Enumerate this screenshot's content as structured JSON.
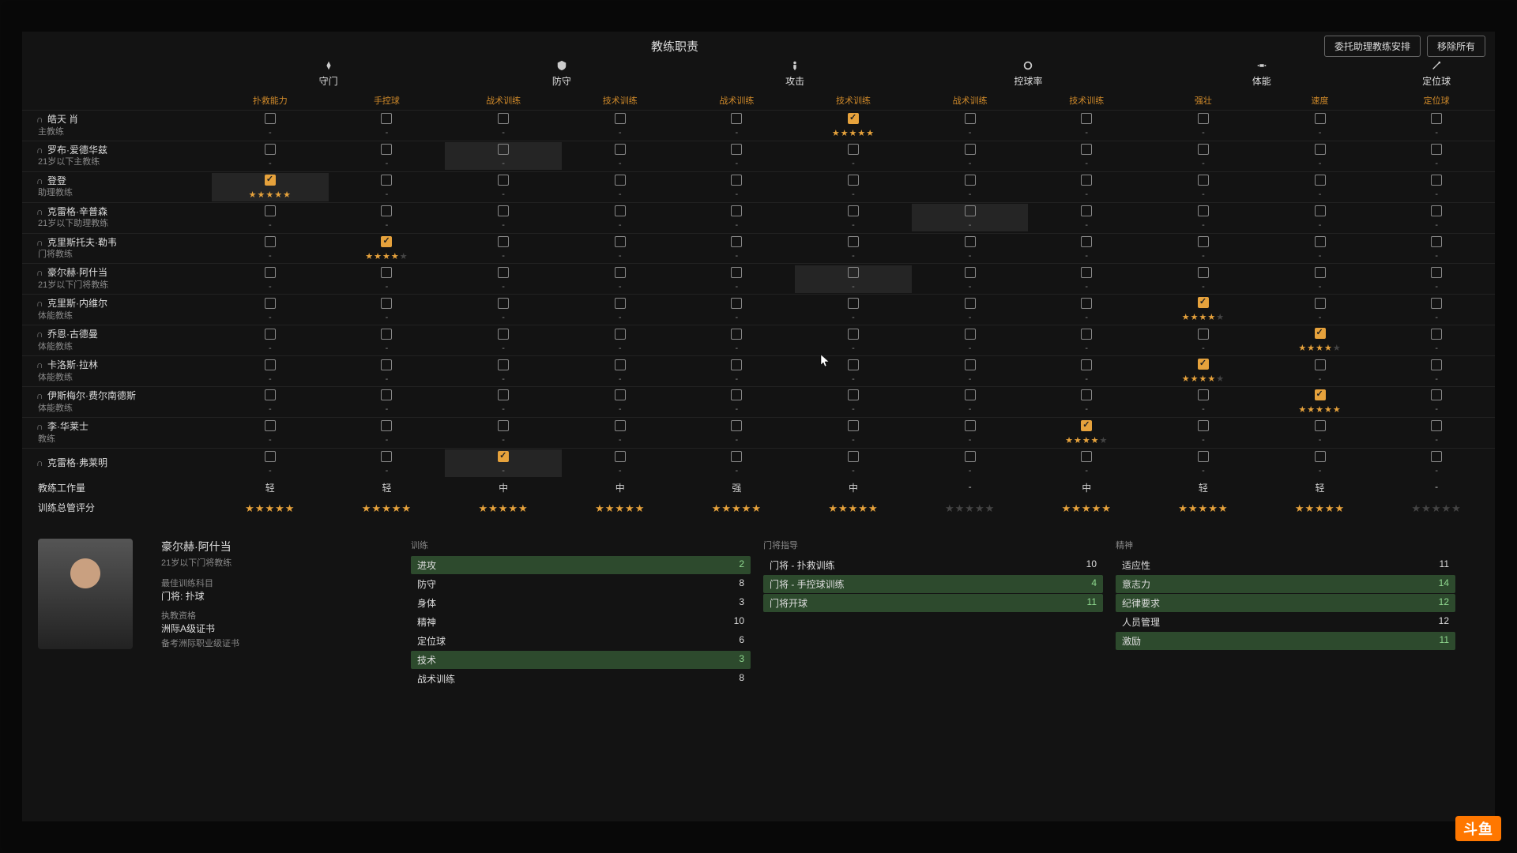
{
  "colors": {
    "accent": "#e6a23c",
    "bg": "#141414",
    "text": "#cccccc",
    "muted": "#888888",
    "highlight_green": "#2d4a2d"
  },
  "header": {
    "title": "教练职责",
    "delegate_btn": "委托助理教练安排",
    "remove_all_btn": "移除所有"
  },
  "categories": [
    {
      "label": "守门",
      "sub": [
        "扑救能力",
        "手控球"
      ]
    },
    {
      "label": "防守",
      "sub": [
        "战术训练",
        "技术训练"
      ]
    },
    {
      "label": "攻击",
      "sub": [
        "战术训练",
        "技术训练"
      ]
    },
    {
      "label": "控球率",
      "sub": [
        "战术训练",
        "技术训练"
      ]
    },
    {
      "label": "体能",
      "sub": [
        "强壮",
        "速度"
      ]
    },
    {
      "label": "定位球",
      "sub": [
        "定位球"
      ]
    }
  ],
  "sub_headers": [
    "扑救能力",
    "手控球",
    "战术训练",
    "技术训练",
    "战术训练",
    "技术训练",
    "战术训练",
    "技术训练",
    "强壮",
    "速度",
    "定位球"
  ],
  "coaches": [
    {
      "name": "皓天 肖",
      "role": "主教练",
      "cells": [
        {
          "c": false
        },
        {
          "c": false
        },
        {
          "c": false
        },
        {
          "c": false
        },
        {
          "c": false
        },
        {
          "c": true,
          "stars": 5
        },
        {
          "c": false
        },
        {
          "c": false
        },
        {
          "c": false
        },
        {
          "c": false
        },
        {
          "c": false
        }
      ]
    },
    {
      "name": "罗布·爱德华兹",
      "role": "21岁以下主教练",
      "cells": [
        {
          "c": false
        },
        {
          "c": false
        },
        {
          "c": false,
          "hl": true
        },
        {
          "c": false
        },
        {
          "c": false
        },
        {
          "c": false
        },
        {
          "c": false
        },
        {
          "c": false
        },
        {
          "c": false
        },
        {
          "c": false
        },
        {
          "c": false
        }
      ]
    },
    {
      "name": "登登",
      "role": "助理教练",
      "cells": [
        {
          "c": true,
          "stars": 5,
          "hl": true
        },
        {
          "c": false
        },
        {
          "c": false
        },
        {
          "c": false
        },
        {
          "c": false
        },
        {
          "c": false
        },
        {
          "c": false
        },
        {
          "c": false
        },
        {
          "c": false
        },
        {
          "c": false
        },
        {
          "c": false
        }
      ]
    },
    {
      "name": "克雷格·辛普森",
      "role": "21岁以下助理教练",
      "cells": [
        {
          "c": false
        },
        {
          "c": false
        },
        {
          "c": false
        },
        {
          "c": false
        },
        {
          "c": false
        },
        {
          "c": false
        },
        {
          "c": false,
          "hl": true
        },
        {
          "c": false
        },
        {
          "c": false
        },
        {
          "c": false
        },
        {
          "c": false
        }
      ]
    },
    {
      "name": "克里斯托夫·勒韦",
      "role": "门将教练",
      "cells": [
        {
          "c": false
        },
        {
          "c": true,
          "stars": 4
        },
        {
          "c": false
        },
        {
          "c": false
        },
        {
          "c": false
        },
        {
          "c": false
        },
        {
          "c": false
        },
        {
          "c": false
        },
        {
          "c": false
        },
        {
          "c": false
        },
        {
          "c": false
        }
      ],
      "row_hl": true
    },
    {
      "name": "豪尔赫·阿什当",
      "role": "21岁以下门将教练",
      "cells": [
        {
          "c": false
        },
        {
          "c": false
        },
        {
          "c": false
        },
        {
          "c": false
        },
        {
          "c": false
        },
        {
          "c": false,
          "hl": true
        },
        {
          "c": false
        },
        {
          "c": false
        },
        {
          "c": false
        },
        {
          "c": false
        },
        {
          "c": false
        }
      ]
    },
    {
      "name": "克里斯·内维尔",
      "role": "体能教练",
      "cells": [
        {
          "c": false
        },
        {
          "c": false
        },
        {
          "c": false
        },
        {
          "c": false
        },
        {
          "c": false
        },
        {
          "c": false
        },
        {
          "c": false
        },
        {
          "c": false
        },
        {
          "c": true,
          "stars": 4
        },
        {
          "c": false
        },
        {
          "c": false
        }
      ]
    },
    {
      "name": "乔恩·古德曼",
      "role": "体能教练",
      "cells": [
        {
          "c": false
        },
        {
          "c": false
        },
        {
          "c": false
        },
        {
          "c": false
        },
        {
          "c": false
        },
        {
          "c": false
        },
        {
          "c": false
        },
        {
          "c": false
        },
        {
          "c": false
        },
        {
          "c": true,
          "stars": 4
        },
        {
          "c": false
        }
      ]
    },
    {
      "name": "卡洛斯·拉林",
      "role": "体能教练",
      "cells": [
        {
          "c": false
        },
        {
          "c": false
        },
        {
          "c": false
        },
        {
          "c": false
        },
        {
          "c": false
        },
        {
          "c": false
        },
        {
          "c": false
        },
        {
          "c": false
        },
        {
          "c": true,
          "stars": 4
        },
        {
          "c": false
        },
        {
          "c": false
        }
      ]
    },
    {
      "name": "伊斯梅尔·费尔南德斯",
      "role": "体能教练",
      "cells": [
        {
          "c": false
        },
        {
          "c": false
        },
        {
          "c": false
        },
        {
          "c": false
        },
        {
          "c": false
        },
        {
          "c": false
        },
        {
          "c": false
        },
        {
          "c": false
        },
        {
          "c": false
        },
        {
          "c": true,
          "stars": 5
        },
        {
          "c": false
        }
      ]
    },
    {
      "name": "李·华莱士",
      "role": "教练",
      "cells": [
        {
          "c": false
        },
        {
          "c": false
        },
        {
          "c": false
        },
        {
          "c": false
        },
        {
          "c": false
        },
        {
          "c": false
        },
        {
          "c": false
        },
        {
          "c": true,
          "stars": 4
        },
        {
          "c": false
        },
        {
          "c": false
        },
        {
          "c": false
        }
      ]
    },
    {
      "name": "克雷格·弗莱明",
      "role": "",
      "cells": [
        {
          "c": false
        },
        {
          "c": false
        },
        {
          "c": true,
          "hl": true
        },
        {
          "c": false
        },
        {
          "c": false
        },
        {
          "c": false
        },
        {
          "c": false
        },
        {
          "c": false
        },
        {
          "c": false
        },
        {
          "c": false
        },
        {
          "c": false
        }
      ]
    }
  ],
  "workload": {
    "label": "教练工作量",
    "values": [
      "轻",
      "轻",
      "中",
      "中",
      "强",
      "中",
      "-",
      "中",
      "轻",
      "轻",
      "-"
    ]
  },
  "rating": {
    "label": "训练总管评分",
    "stars": [
      5,
      5,
      4.5,
      5,
      5,
      5,
      0,
      4.5,
      5,
      5,
      0
    ]
  },
  "detail": {
    "name": "豪尔赫·阿什当",
    "role": "21岁以下门将教练",
    "best_label": "最佳训练科目",
    "best": "门将: 扑球",
    "license_label": "执教资格",
    "license": "洲际A级证书",
    "license_sub": "备考洲际职业级证书",
    "cols": [
      {
        "hdr": "训练",
        "attrs": [
          {
            "k": "进攻",
            "v": "2",
            "hi": true
          },
          {
            "k": "防守",
            "v": "8"
          },
          {
            "k": "身体",
            "v": "3"
          },
          {
            "k": "精神",
            "v": "10"
          },
          {
            "k": "定位球",
            "v": "6"
          },
          {
            "k": "技术",
            "v": "3",
            "hi": true
          },
          {
            "k": "战术训练",
            "v": "8"
          }
        ]
      },
      {
        "hdr": "门将指导",
        "attrs": [
          {
            "k": "门将 - 扑救训练",
            "v": "10"
          },
          {
            "k": "门将 - 手控球训练",
            "v": "4",
            "hi": true
          },
          {
            "k": "门将开球",
            "v": "11",
            "hi": true
          }
        ]
      },
      {
        "hdr": "精神",
        "attrs": [
          {
            "k": "适应性",
            "v": "11"
          },
          {
            "k": "意志力",
            "v": "14",
            "hi": true
          },
          {
            "k": "纪律要求",
            "v": "12",
            "hi": true
          },
          {
            "k": "人员管理",
            "v": "12"
          },
          {
            "k": "激励",
            "v": "11",
            "hi": true
          }
        ]
      }
    ]
  },
  "corner_logo": "斗鱼"
}
